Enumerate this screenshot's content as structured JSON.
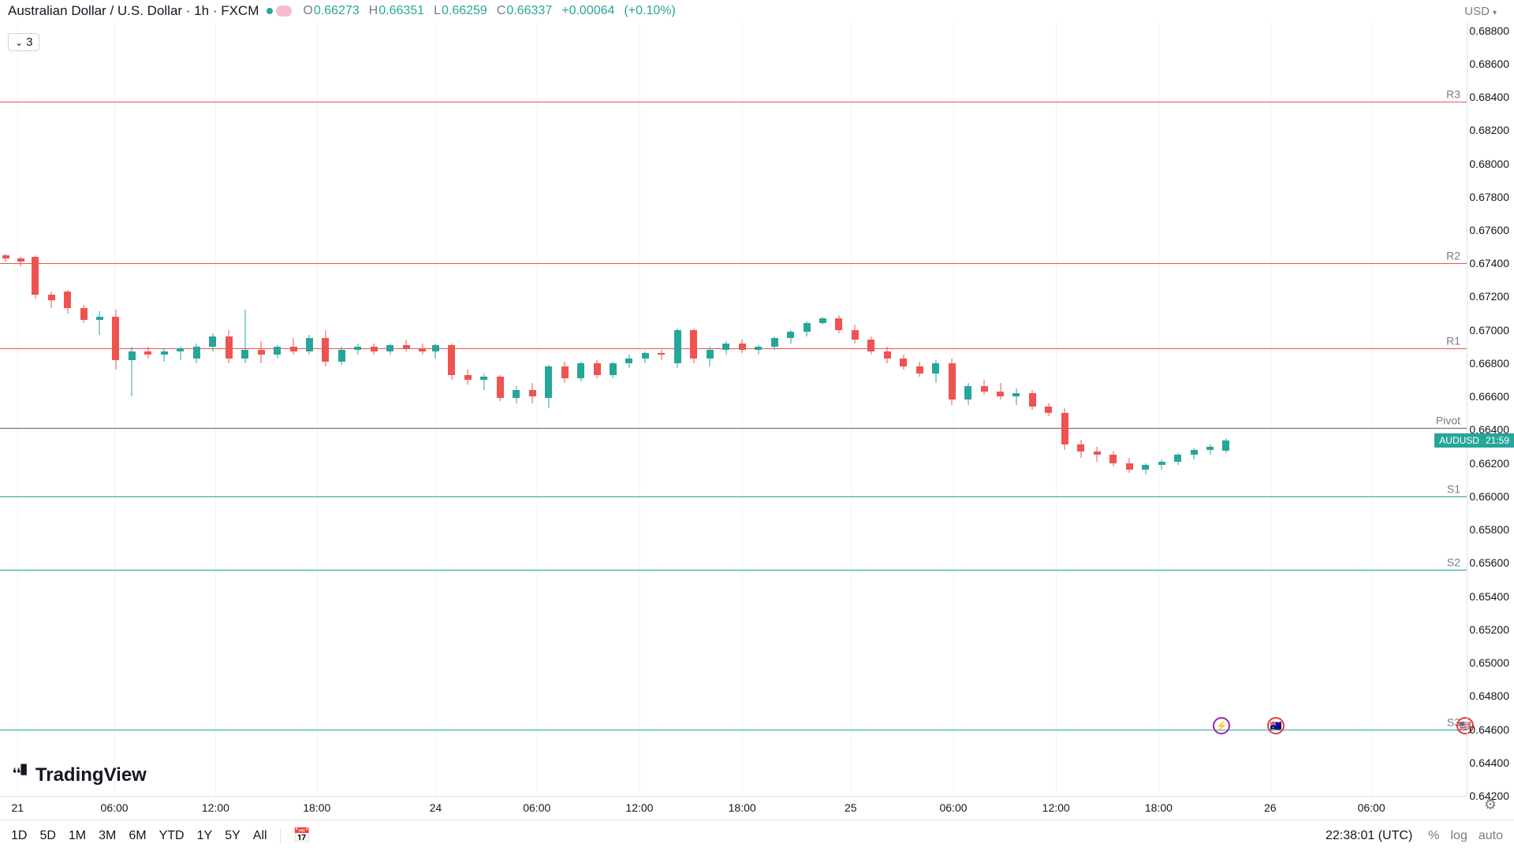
{
  "header": {
    "title": "Australian Dollar / U.S. Dollar · 1h · FXCM",
    "dot_color": "#26a69a",
    "pill_color": "#f8bbd0",
    "ohlc": {
      "o_label": "O",
      "o_val": "0.66273",
      "h_label": "H",
      "h_val": "0.66351",
      "l_label": "L",
      "l_val": "0.66259",
      "c_label": "C",
      "c_val": "0.66337",
      "chg": "+0.00064",
      "chg_pct": "(+0.10%)"
    }
  },
  "currency_selector": "USD",
  "indicator_toggle": "3",
  "chart": {
    "type": "candlestick",
    "price_min": 0.642,
    "price_max": 0.6885,
    "y_ticks": [
      0.688,
      0.686,
      0.684,
      0.682,
      0.68,
      0.678,
      0.676,
      0.674,
      0.672,
      0.67,
      0.668,
      0.666,
      0.664,
      0.662,
      0.66,
      0.658,
      0.656,
      0.654,
      0.652,
      0.65,
      0.648,
      0.646,
      0.644,
      0.642
    ],
    "x_ticks": [
      {
        "pos": 0.012,
        "label": "21"
      },
      {
        "pos": 0.078,
        "label": "06:00"
      },
      {
        "pos": 0.147,
        "label": "12:00"
      },
      {
        "pos": 0.216,
        "label": "18:00"
      },
      {
        "pos": 0.297,
        "label": "24"
      },
      {
        "pos": 0.366,
        "label": "06:00"
      },
      {
        "pos": 0.436,
        "label": "12:00"
      },
      {
        "pos": 0.506,
        "label": "18:00"
      },
      {
        "pos": 0.58,
        "label": "25"
      },
      {
        "pos": 0.65,
        "label": "06:00"
      },
      {
        "pos": 0.72,
        "label": "12:00"
      },
      {
        "pos": 0.79,
        "label": "18:00"
      },
      {
        "pos": 0.866,
        "label": "26"
      },
      {
        "pos": 0.935,
        "label": "06:00"
      }
    ],
    "gridlines_x": [
      0.012,
      0.078,
      0.147,
      0.216,
      0.297,
      0.366,
      0.436,
      0.506,
      0.58,
      0.65,
      0.72,
      0.79,
      0.866,
      0.935
    ],
    "pivot_lines": [
      {
        "label": "R3",
        "price": 0.6837,
        "color": "#ef5350"
      },
      {
        "label": "R2",
        "price": 0.674,
        "color": "#ef5350"
      },
      {
        "label": "R1",
        "price": 0.6689,
        "color": "#ef5350"
      },
      {
        "label": "Pivot",
        "price": 0.6641,
        "color": "#5d606b"
      },
      {
        "label": "S1",
        "price": 0.66,
        "color": "#26a69a"
      },
      {
        "label": "S2",
        "price": 0.6556,
        "color": "#26a69a"
      },
      {
        "label": "S3",
        "price": 0.646,
        "color": "#26a69a"
      }
    ],
    "price_flag": {
      "symbol": "AUDUSD",
      "countdown": "21:59",
      "price": 0.66337
    },
    "colors": {
      "up": "#26a69a",
      "down": "#ef5350",
      "grid": "#f0f3fa",
      "axis_border": "#e0e3eb"
    },
    "candle_width": 9,
    "candles": [
      {
        "x": 0.004,
        "o": 0.6745,
        "h": 0.6746,
        "l": 0.6741,
        "c": 0.6743
      },
      {
        "x": 0.014,
        "o": 0.6743,
        "h": 0.6744,
        "l": 0.6738,
        "c": 0.6741
      },
      {
        "x": 0.024,
        "o": 0.6744,
        "h": 0.6745,
        "l": 0.6719,
        "c": 0.6721
      },
      {
        "x": 0.035,
        "o": 0.6721,
        "h": 0.6723,
        "l": 0.6713,
        "c": 0.6718
      },
      {
        "x": 0.046,
        "o": 0.6723,
        "h": 0.6724,
        "l": 0.671,
        "c": 0.6713
      },
      {
        "x": 0.057,
        "o": 0.6713,
        "h": 0.6715,
        "l": 0.6704,
        "c": 0.6706
      },
      {
        "x": 0.068,
        "o": 0.6706,
        "h": 0.6711,
        "l": 0.6697,
        "c": 0.6708
      },
      {
        "x": 0.079,
        "o": 0.6708,
        "h": 0.6712,
        "l": 0.6676,
        "c": 0.6682
      },
      {
        "x": 0.09,
        "o": 0.6682,
        "h": 0.669,
        "l": 0.666,
        "c": 0.6687
      },
      {
        "x": 0.101,
        "o": 0.6687,
        "h": 0.669,
        "l": 0.6683,
        "c": 0.6685
      },
      {
        "x": 0.112,
        "o": 0.6685,
        "h": 0.6689,
        "l": 0.6681,
        "c": 0.6687
      },
      {
        "x": 0.123,
        "o": 0.6687,
        "h": 0.669,
        "l": 0.6682,
        "c": 0.6689
      },
      {
        "x": 0.134,
        "o": 0.6683,
        "h": 0.6692,
        "l": 0.668,
        "c": 0.669
      },
      {
        "x": 0.145,
        "o": 0.669,
        "h": 0.6698,
        "l": 0.6687,
        "c": 0.6696
      },
      {
        "x": 0.156,
        "o": 0.6696,
        "h": 0.67,
        "l": 0.668,
        "c": 0.6683
      },
      {
        "x": 0.167,
        "o": 0.6683,
        "h": 0.6712,
        "l": 0.668,
        "c": 0.6688
      },
      {
        "x": 0.178,
        "o": 0.6688,
        "h": 0.6693,
        "l": 0.668,
        "c": 0.6685
      },
      {
        "x": 0.189,
        "o": 0.6685,
        "h": 0.6691,
        "l": 0.6683,
        "c": 0.669
      },
      {
        "x": 0.2,
        "o": 0.669,
        "h": 0.6695,
        "l": 0.6685,
        "c": 0.6687
      },
      {
        "x": 0.211,
        "o": 0.6687,
        "h": 0.6697,
        "l": 0.6685,
        "c": 0.6695
      },
      {
        "x": 0.222,
        "o": 0.6695,
        "h": 0.67,
        "l": 0.6678,
        "c": 0.6681
      },
      {
        "x": 0.233,
        "o": 0.6681,
        "h": 0.669,
        "l": 0.6679,
        "c": 0.6688
      },
      {
        "x": 0.244,
        "o": 0.6688,
        "h": 0.6692,
        "l": 0.6685,
        "c": 0.669
      },
      {
        "x": 0.255,
        "o": 0.669,
        "h": 0.6692,
        "l": 0.6685,
        "c": 0.6687
      },
      {
        "x": 0.266,
        "o": 0.6687,
        "h": 0.6692,
        "l": 0.6685,
        "c": 0.6691
      },
      {
        "x": 0.277,
        "o": 0.6691,
        "h": 0.6694,
        "l": 0.6687,
        "c": 0.6689
      },
      {
        "x": 0.288,
        "o": 0.6689,
        "h": 0.6692,
        "l": 0.6685,
        "c": 0.6687
      },
      {
        "x": 0.297,
        "o": 0.6687,
        "h": 0.6692,
        "l": 0.6683,
        "c": 0.6691
      },
      {
        "x": 0.308,
        "o": 0.6691,
        "h": 0.6692,
        "l": 0.667,
        "c": 0.6673
      },
      {
        "x": 0.319,
        "o": 0.6673,
        "h": 0.6676,
        "l": 0.6667,
        "c": 0.667
      },
      {
        "x": 0.33,
        "o": 0.667,
        "h": 0.6674,
        "l": 0.6664,
        "c": 0.6672
      },
      {
        "x": 0.341,
        "o": 0.6672,
        "h": 0.6673,
        "l": 0.6657,
        "c": 0.6659
      },
      {
        "x": 0.352,
        "o": 0.6659,
        "h": 0.6666,
        "l": 0.6656,
        "c": 0.6664
      },
      {
        "x": 0.363,
        "o": 0.6664,
        "h": 0.6668,
        "l": 0.6656,
        "c": 0.666
      },
      {
        "x": 0.374,
        "o": 0.6659,
        "h": 0.6679,
        "l": 0.6653,
        "c": 0.6678
      },
      {
        "x": 0.385,
        "o": 0.6678,
        "h": 0.6681,
        "l": 0.6668,
        "c": 0.6671
      },
      {
        "x": 0.396,
        "o": 0.6671,
        "h": 0.6681,
        "l": 0.6669,
        "c": 0.668
      },
      {
        "x": 0.407,
        "o": 0.668,
        "h": 0.6682,
        "l": 0.6671,
        "c": 0.6673
      },
      {
        "x": 0.418,
        "o": 0.6673,
        "h": 0.6681,
        "l": 0.6671,
        "c": 0.668
      },
      {
        "x": 0.429,
        "o": 0.668,
        "h": 0.6685,
        "l": 0.6677,
        "c": 0.6683
      },
      {
        "x": 0.44,
        "o": 0.6683,
        "h": 0.6687,
        "l": 0.668,
        "c": 0.6686
      },
      {
        "x": 0.451,
        "o": 0.6686,
        "h": 0.6688,
        "l": 0.6682,
        "c": 0.6685
      },
      {
        "x": 0.462,
        "o": 0.668,
        "h": 0.6701,
        "l": 0.6677,
        "c": 0.67
      },
      {
        "x": 0.473,
        "o": 0.67,
        "h": 0.6701,
        "l": 0.668,
        "c": 0.6683
      },
      {
        "x": 0.484,
        "o": 0.6683,
        "h": 0.669,
        "l": 0.6678,
        "c": 0.6688
      },
      {
        "x": 0.495,
        "o": 0.6688,
        "h": 0.6693,
        "l": 0.6685,
        "c": 0.6692
      },
      {
        "x": 0.506,
        "o": 0.6692,
        "h": 0.6694,
        "l": 0.6686,
        "c": 0.6688
      },
      {
        "x": 0.517,
        "o": 0.6688,
        "h": 0.6691,
        "l": 0.6685,
        "c": 0.669
      },
      {
        "x": 0.528,
        "o": 0.669,
        "h": 0.6696,
        "l": 0.6688,
        "c": 0.6695
      },
      {
        "x": 0.539,
        "o": 0.6695,
        "h": 0.67,
        "l": 0.6692,
        "c": 0.6699
      },
      {
        "x": 0.55,
        "o": 0.6699,
        "h": 0.6705,
        "l": 0.6696,
        "c": 0.6704
      },
      {
        "x": 0.561,
        "o": 0.6704,
        "h": 0.6708,
        "l": 0.6703,
        "c": 0.6707
      },
      {
        "x": 0.572,
        "o": 0.6707,
        "h": 0.6709,
        "l": 0.6698,
        "c": 0.67
      },
      {
        "x": 0.583,
        "o": 0.67,
        "h": 0.6703,
        "l": 0.6692,
        "c": 0.6694
      },
      {
        "x": 0.594,
        "o": 0.6694,
        "h": 0.6696,
        "l": 0.6685,
        "c": 0.6687
      },
      {
        "x": 0.605,
        "o": 0.6687,
        "h": 0.669,
        "l": 0.668,
        "c": 0.6683
      },
      {
        "x": 0.616,
        "o": 0.6683,
        "h": 0.6685,
        "l": 0.6676,
        "c": 0.6678
      },
      {
        "x": 0.627,
        "o": 0.6678,
        "h": 0.6681,
        "l": 0.6672,
        "c": 0.6674
      },
      {
        "x": 0.638,
        "o": 0.6674,
        "h": 0.6682,
        "l": 0.6668,
        "c": 0.668
      },
      {
        "x": 0.649,
        "o": 0.668,
        "h": 0.6683,
        "l": 0.6655,
        "c": 0.6658
      },
      {
        "x": 0.66,
        "o": 0.6658,
        "h": 0.6668,
        "l": 0.6655,
        "c": 0.6666
      },
      {
        "x": 0.671,
        "o": 0.6666,
        "h": 0.667,
        "l": 0.6661,
        "c": 0.6663
      },
      {
        "x": 0.682,
        "o": 0.6663,
        "h": 0.6668,
        "l": 0.6658,
        "c": 0.666
      },
      {
        "x": 0.693,
        "o": 0.666,
        "h": 0.6665,
        "l": 0.6655,
        "c": 0.6662
      },
      {
        "x": 0.704,
        "o": 0.6662,
        "h": 0.6664,
        "l": 0.6652,
        "c": 0.6654
      },
      {
        "x": 0.715,
        "o": 0.6654,
        "h": 0.6656,
        "l": 0.6648,
        "c": 0.665
      },
      {
        "x": 0.726,
        "o": 0.665,
        "h": 0.6653,
        "l": 0.6628,
        "c": 0.6631
      },
      {
        "x": 0.737,
        "o": 0.6631,
        "h": 0.6634,
        "l": 0.6623,
        "c": 0.6627
      },
      {
        "x": 0.748,
        "o": 0.6627,
        "h": 0.663,
        "l": 0.6621,
        "c": 0.6625
      },
      {
        "x": 0.759,
        "o": 0.6625,
        "h": 0.6627,
        "l": 0.6618,
        "c": 0.662
      },
      {
        "x": 0.77,
        "o": 0.662,
        "h": 0.6623,
        "l": 0.6614,
        "c": 0.6616
      },
      {
        "x": 0.781,
        "o": 0.6616,
        "h": 0.662,
        "l": 0.6613,
        "c": 0.6619
      },
      {
        "x": 0.792,
        "o": 0.6619,
        "h": 0.6622,
        "l": 0.6616,
        "c": 0.6621
      },
      {
        "x": 0.803,
        "o": 0.6621,
        "h": 0.6626,
        "l": 0.6619,
        "c": 0.6625
      },
      {
        "x": 0.814,
        "o": 0.6625,
        "h": 0.6629,
        "l": 0.6622,
        "c": 0.6628
      },
      {
        "x": 0.825,
        "o": 0.6628,
        "h": 0.6631,
        "l": 0.6625,
        "c": 0.663
      },
      {
        "x": 0.836,
        "o": 0.66273,
        "h": 0.66351,
        "l": 0.66259,
        "c": 0.66337
      }
    ],
    "event_icons": [
      {
        "x": 0.833,
        "type": "lightning",
        "color": "#9c27b0"
      },
      {
        "x": 0.87,
        "type": "flag-au",
        "color": "#e53935"
      },
      {
        "x": 0.999,
        "type": "flag-us",
        "color": "#e53935"
      }
    ]
  },
  "watermark": "TradingView",
  "bottom_bar": {
    "timeframes": [
      "1D",
      "5D",
      "1M",
      "3M",
      "6M",
      "YTD",
      "1Y",
      "5Y",
      "All"
    ],
    "clock": "22:38:01 (UTC)",
    "scale": [
      "%",
      "log",
      "auto"
    ]
  }
}
